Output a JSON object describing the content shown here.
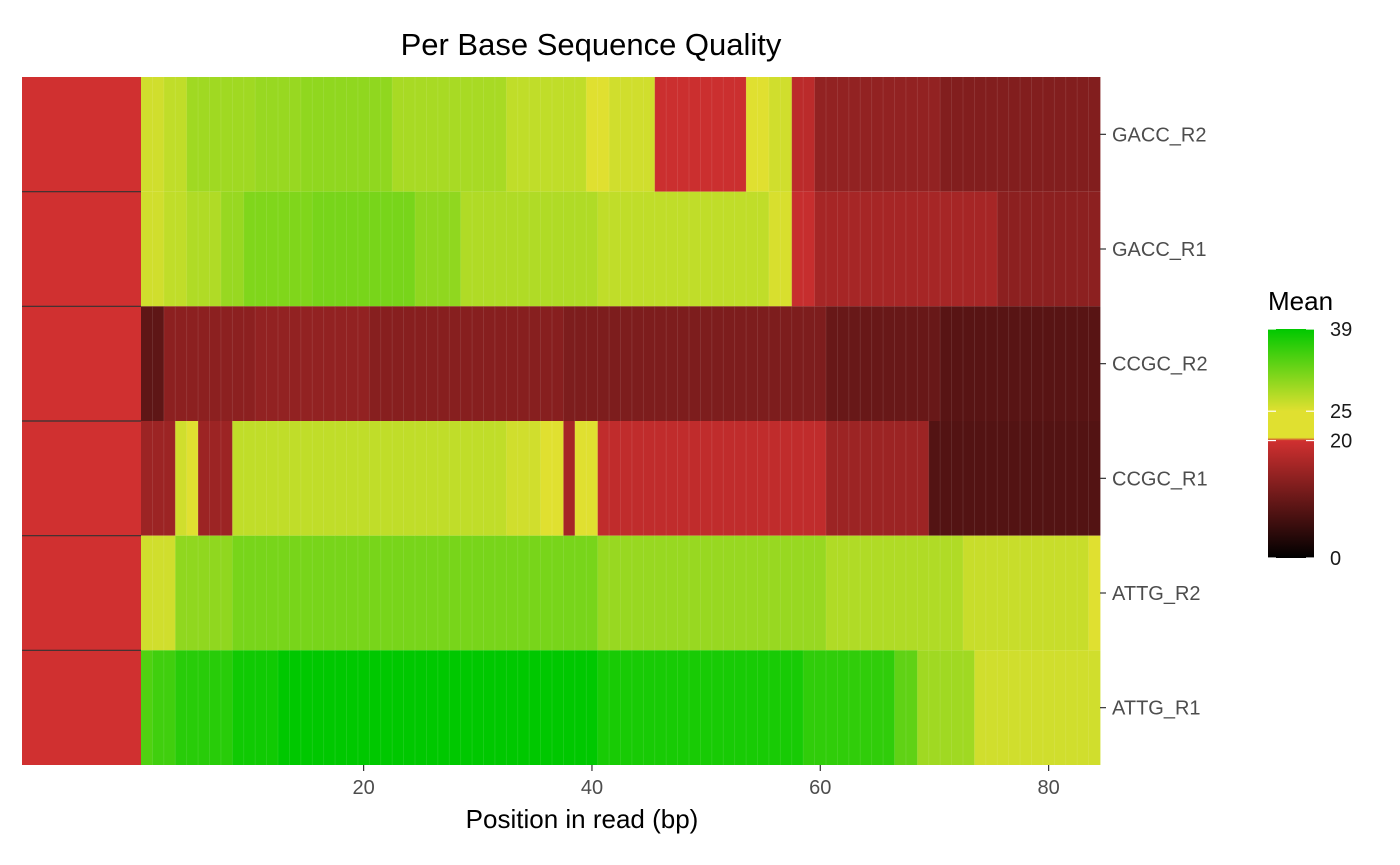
{
  "chart_data": {
    "type": "heatmap",
    "title": "Per Base Sequence Quality",
    "xlabel": "Position in read (bp)",
    "ylabel": "",
    "x_range": [
      1,
      84
    ],
    "x_ticks": [
      20,
      40,
      60,
      80
    ],
    "rows": [
      "GACC_R2",
      "GACC_R1",
      "CCGC_R2",
      "CCGC_R1",
      "ATTG_R2",
      "ATTG_R1"
    ],
    "row_label_color": "#d03030",
    "legend": {
      "title": "Mean",
      "ticks": [
        0,
        20,
        25,
        39
      ],
      "color_stops": [
        {
          "value": 0,
          "color": "#000000"
        },
        {
          "value": 20,
          "color": "#d03030"
        },
        {
          "value": 20.5,
          "color": "#e0e030"
        },
        {
          "value": 25,
          "color": "#e0e030"
        },
        {
          "value": 39,
          "color": "#00c800"
        }
      ]
    },
    "series": [
      {
        "name": "GACC_R2",
        "segments": [
          [
            1,
            2,
            26
          ],
          [
            3,
            4,
            27
          ],
          [
            5,
            10,
            29
          ],
          [
            11,
            14,
            29.5
          ],
          [
            15,
            22,
            30
          ],
          [
            23,
            32,
            28.5
          ],
          [
            33,
            39,
            27
          ],
          [
            40,
            41,
            22
          ],
          [
            42,
            45,
            26
          ],
          [
            46,
            53,
            19.5
          ],
          [
            54,
            55,
            23
          ],
          [
            56,
            57,
            26
          ],
          [
            58,
            59,
            18
          ],
          [
            60,
            70,
            14
          ],
          [
            71,
            84,
            12.5
          ]
        ]
      },
      {
        "name": "GACC_R1",
        "segments": [
          [
            1,
            2,
            26
          ],
          [
            3,
            4,
            27
          ],
          [
            5,
            7,
            28
          ],
          [
            8,
            9,
            29.5
          ],
          [
            10,
            15,
            31
          ],
          [
            16,
            24,
            31.5
          ],
          [
            25,
            28,
            30
          ],
          [
            29,
            40,
            28
          ],
          [
            41,
            55,
            27
          ],
          [
            56,
            57,
            25.5
          ],
          [
            58,
            59,
            19
          ],
          [
            60,
            75,
            16
          ],
          [
            76,
            84,
            13.5
          ]
        ]
      },
      {
        "name": "CCGC_R2",
        "segments": [
          [
            1,
            2,
            9
          ],
          [
            3,
            10,
            13.5
          ],
          [
            11,
            20,
            14
          ],
          [
            21,
            37,
            13
          ],
          [
            38,
            60,
            12
          ],
          [
            61,
            70,
            10
          ],
          [
            71,
            84,
            8.5
          ]
        ]
      },
      {
        "name": "CCGC_R1",
        "segments": [
          [
            1,
            3,
            15
          ],
          [
            4,
            4,
            26
          ],
          [
            5,
            5,
            24
          ],
          [
            6,
            8,
            15
          ],
          [
            9,
            12,
            27
          ],
          [
            13,
            32,
            27
          ],
          [
            33,
            35,
            26
          ],
          [
            36,
            36,
            24
          ],
          [
            37,
            37,
            21
          ],
          [
            38,
            38,
            16
          ],
          [
            39,
            40,
            22
          ],
          [
            41,
            60,
            18.5
          ],
          [
            61,
            69,
            15
          ],
          [
            70,
            84,
            8
          ]
        ]
      },
      {
        "name": "ATTG_R2",
        "segments": [
          [
            1,
            3,
            26
          ],
          [
            4,
            8,
            30
          ],
          [
            9,
            40,
            31.5
          ],
          [
            41,
            60,
            29.5
          ],
          [
            61,
            72,
            28
          ],
          [
            73,
            83,
            26.5
          ],
          [
            84,
            84,
            22
          ]
        ]
      },
      {
        "name": "ATTG_R1",
        "segments": [
          [
            1,
            1,
            34
          ],
          [
            2,
            3,
            35
          ],
          [
            4,
            8,
            36.5
          ],
          [
            9,
            12,
            38
          ],
          [
            13,
            40,
            39
          ],
          [
            41,
            58,
            37.5
          ],
          [
            59,
            66,
            36
          ],
          [
            67,
            68,
            33
          ],
          [
            69,
            73,
            29
          ],
          [
            74,
            84,
            26
          ]
        ]
      }
    ]
  }
}
